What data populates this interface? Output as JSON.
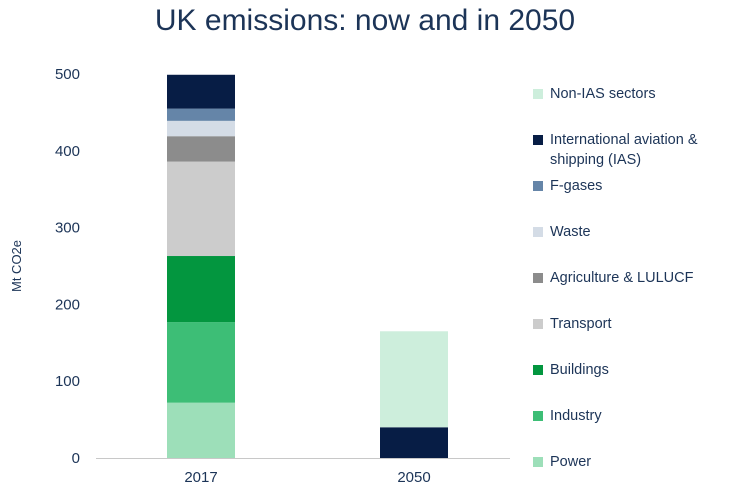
{
  "chart_data": {
    "type": "bar",
    "stacked": true,
    "title": "UK emissions: now and in 2050",
    "ylabel": "Mt CO2e",
    "xlabel": "",
    "ylim": [
      0,
      500
    ],
    "yticks": [
      0,
      100,
      200,
      300,
      400,
      500
    ],
    "categories": [
      "2017",
      "2050"
    ],
    "series": [
      {
        "name": "Power",
        "color": "#9ddfb9",
        "values": [
          72,
          0
        ]
      },
      {
        "name": "Industry",
        "color": "#3dbe76",
        "values": [
          105,
          0
        ]
      },
      {
        "name": "Buildings",
        "color": "#03963f",
        "values": [
          86,
          0
        ]
      },
      {
        "name": "Transport",
        "color": "#cccccc",
        "values": [
          123,
          0
        ]
      },
      {
        "name": "Agriculture & LULUCF",
        "color": "#8c8c8c",
        "values": [
          33,
          0
        ]
      },
      {
        "name": "Waste",
        "color": "#d4dce6",
        "values": [
          20,
          0
        ]
      },
      {
        "name": "F-gases",
        "color": "#6585a8",
        "values": [
          16,
          0
        ]
      },
      {
        "name": "International aviation  & shipping (IAS)",
        "color": "#071d45",
        "values": [
          44,
          40
        ]
      },
      {
        "name": "Non-IAS sectors",
        "color": "#cdeedc",
        "values": [
          0,
          125
        ]
      }
    ],
    "legend_position": "right"
  }
}
